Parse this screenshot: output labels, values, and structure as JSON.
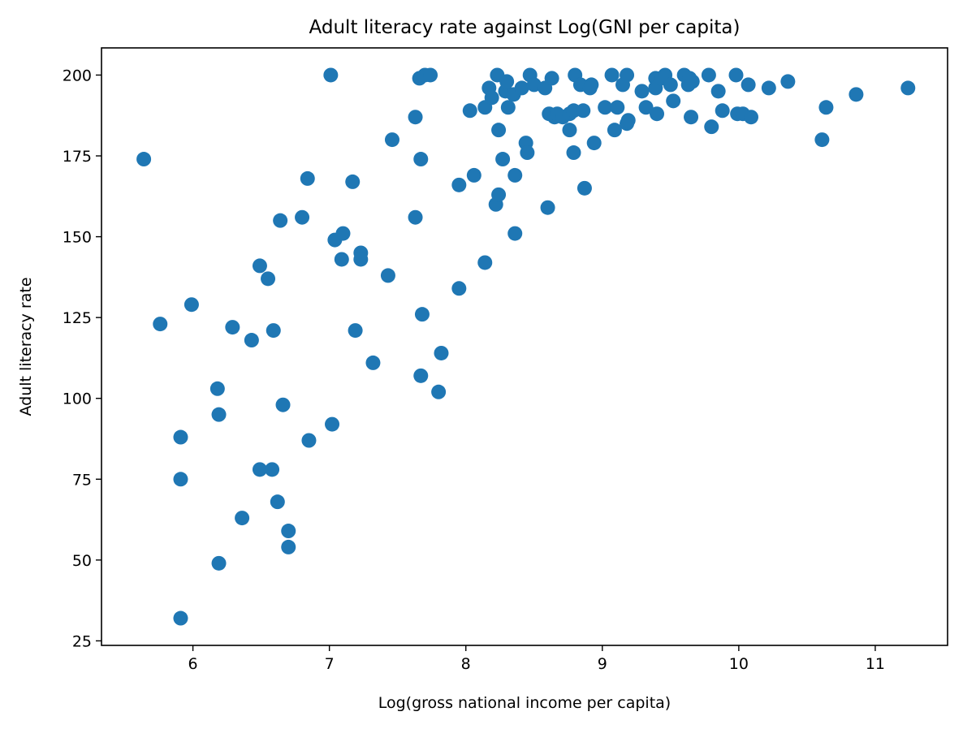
{
  "chart_data": {
    "type": "scatter",
    "title": "Adult literacy rate against Log(GNI per capita)",
    "xlabel": "Log(gross national income per capita)",
    "ylabel": "Adult literacy rate",
    "xlim": [
      5.33,
      11.53
    ],
    "ylim": [
      23.6,
      208.4
    ],
    "xticks": [
      6,
      7,
      8,
      9,
      10,
      11
    ],
    "yticks": [
      25,
      50,
      75,
      100,
      125,
      150,
      175,
      200
    ],
    "grid": false,
    "marker_color": "#1f77b4",
    "points": [
      [
        5.64,
        174
      ],
      [
        5.76,
        123
      ],
      [
        5.91,
        88
      ],
      [
        5.91,
        75
      ],
      [
        5.91,
        32
      ],
      [
        5.99,
        129
      ],
      [
        6.18,
        103
      ],
      [
        6.19,
        95
      ],
      [
        6.19,
        49
      ],
      [
        6.29,
        122
      ],
      [
        6.36,
        63
      ],
      [
        6.43,
        118
      ],
      [
        6.49,
        141
      ],
      [
        6.49,
        78
      ],
      [
        6.55,
        137
      ],
      [
        6.58,
        78
      ],
      [
        6.59,
        121
      ],
      [
        6.62,
        68
      ],
      [
        6.64,
        155
      ],
      [
        6.66,
        98
      ],
      [
        6.7,
        59
      ],
      [
        6.7,
        54
      ],
      [
        6.8,
        156
      ],
      [
        6.84,
        168
      ],
      [
        6.85,
        87
      ],
      [
        7.01,
        200
      ],
      [
        7.02,
        92
      ],
      [
        7.04,
        149
      ],
      [
        7.09,
        143
      ],
      [
        7.1,
        151
      ],
      [
        7.17,
        167
      ],
      [
        7.19,
        121
      ],
      [
        7.23,
        145
      ],
      [
        7.23,
        143
      ],
      [
        7.32,
        111
      ],
      [
        7.43,
        138
      ],
      [
        7.46,
        180
      ],
      [
        7.63,
        187
      ],
      [
        7.63,
        156
      ],
      [
        7.66,
        199
      ],
      [
        7.67,
        174
      ],
      [
        7.67,
        107
      ],
      [
        7.68,
        126
      ],
      [
        7.7,
        200
      ],
      [
        7.74,
        200
      ],
      [
        7.8,
        102
      ],
      [
        7.82,
        114
      ],
      [
        7.95,
        166
      ],
      [
        7.95,
        134
      ],
      [
        8.03,
        189
      ],
      [
        8.06,
        169
      ],
      [
        8.14,
        190
      ],
      [
        8.14,
        142
      ],
      [
        8.17,
        196
      ],
      [
        8.19,
        193
      ],
      [
        8.22,
        160
      ],
      [
        8.23,
        200
      ],
      [
        8.24,
        183
      ],
      [
        8.24,
        163
      ],
      [
        8.27,
        174
      ],
      [
        8.29,
        195
      ],
      [
        8.3,
        198
      ],
      [
        8.31,
        190
      ],
      [
        8.35,
        194
      ],
      [
        8.36,
        169
      ],
      [
        8.36,
        151
      ],
      [
        8.41,
        196
      ],
      [
        8.44,
        179
      ],
      [
        8.45,
        176
      ],
      [
        8.47,
        200
      ],
      [
        8.5,
        197
      ],
      [
        8.58,
        196
      ],
      [
        8.6,
        159
      ],
      [
        8.61,
        188
      ],
      [
        8.63,
        199
      ],
      [
        8.65,
        187
      ],
      [
        8.67,
        188
      ],
      [
        8.71,
        187
      ],
      [
        8.76,
        188
      ],
      [
        8.76,
        183
      ],
      [
        8.79,
        189
      ],
      [
        8.79,
        176
      ],
      [
        8.8,
        200
      ],
      [
        8.84,
        197
      ],
      [
        8.86,
        189
      ],
      [
        8.87,
        165
      ],
      [
        8.91,
        196
      ],
      [
        8.92,
        197
      ],
      [
        8.94,
        179
      ],
      [
        9.02,
        190
      ],
      [
        9.07,
        200
      ],
      [
        9.09,
        183
      ],
      [
        9.11,
        190
      ],
      [
        9.15,
        197
      ],
      [
        9.18,
        200
      ],
      [
        9.18,
        185
      ],
      [
        9.19,
        186
      ],
      [
        9.29,
        195
      ],
      [
        9.32,
        190
      ],
      [
        9.39,
        199
      ],
      [
        9.39,
        196
      ],
      [
        9.4,
        188
      ],
      [
        9.43,
        199
      ],
      [
        9.46,
        200
      ],
      [
        9.5,
        197
      ],
      [
        9.52,
        192
      ],
      [
        9.6,
        200
      ],
      [
        9.63,
        197
      ],
      [
        9.64,
        199
      ],
      [
        9.65,
        187
      ],
      [
        9.66,
        198
      ],
      [
        9.78,
        200
      ],
      [
        9.8,
        184
      ],
      [
        9.85,
        195
      ],
      [
        9.88,
        189
      ],
      [
        9.98,
        200
      ],
      [
        9.99,
        188
      ],
      [
        10.03,
        188
      ],
      [
        10.07,
        197
      ],
      [
        10.09,
        187
      ],
      [
        10.22,
        196
      ],
      [
        10.36,
        198
      ],
      [
        10.61,
        180
      ],
      [
        10.64,
        190
      ],
      [
        10.86,
        194
      ],
      [
        11.24,
        196
      ]
    ]
  }
}
